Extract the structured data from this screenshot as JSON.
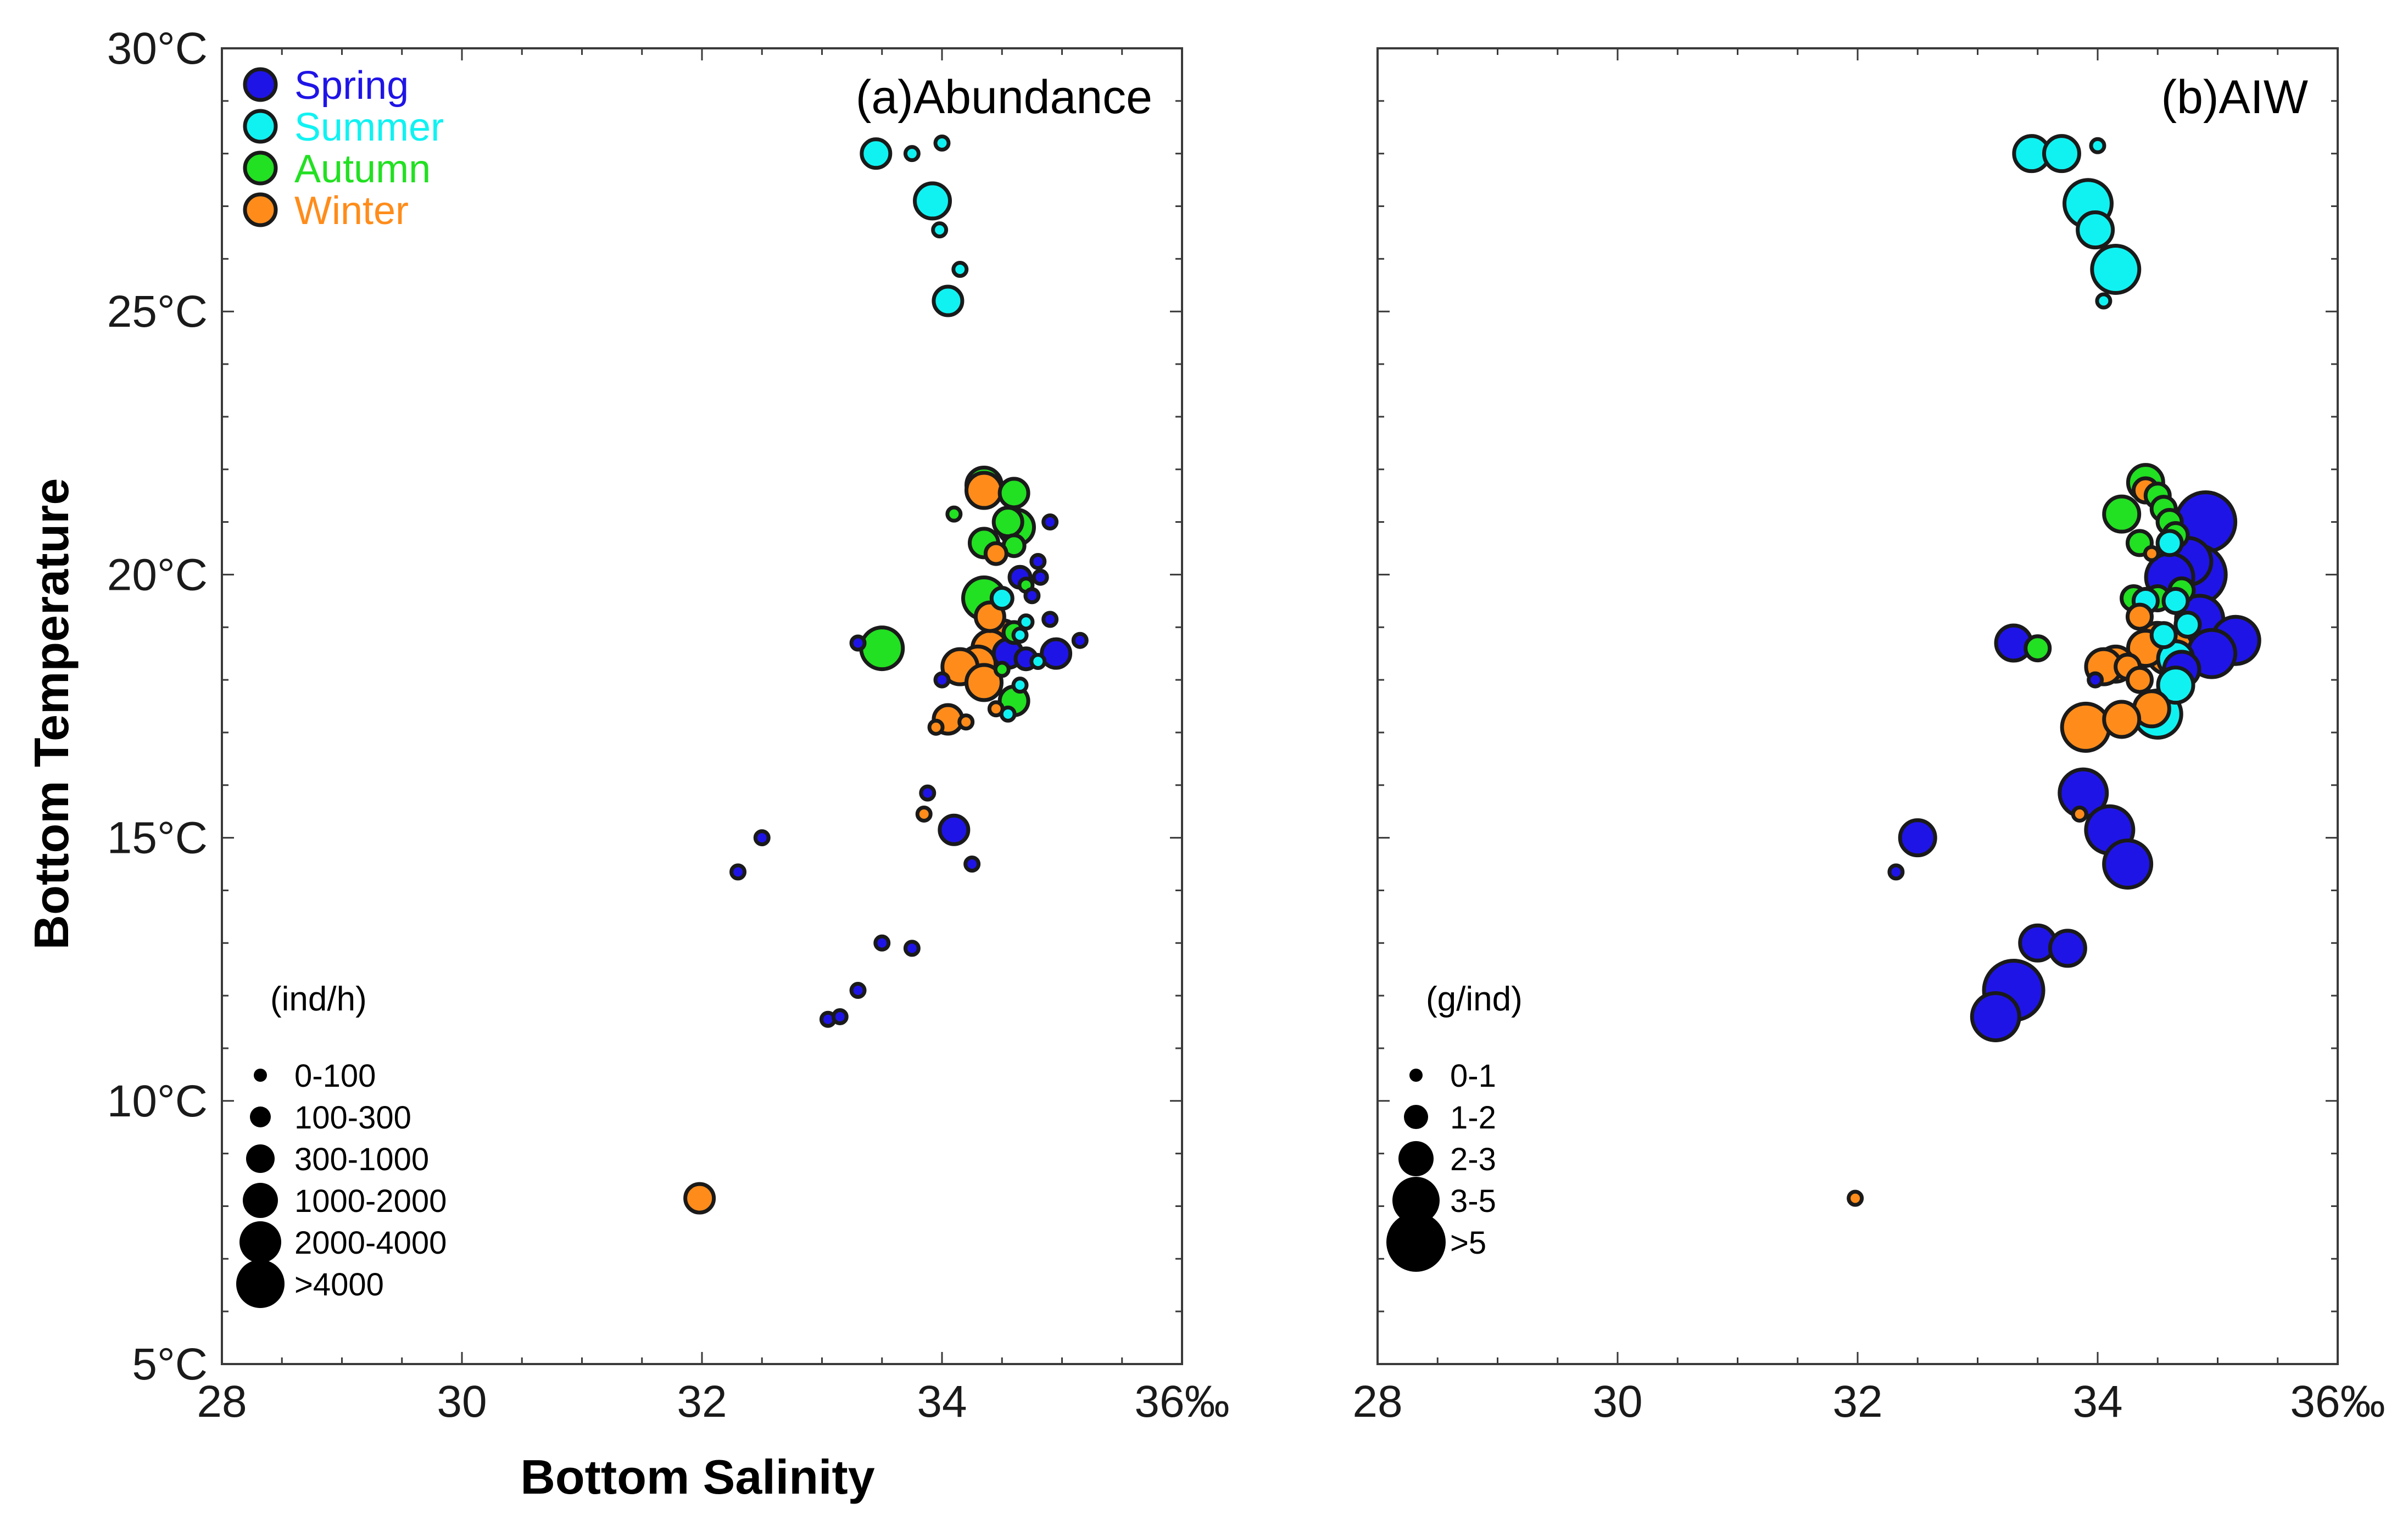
{
  "figure": {
    "x_axis_title": "Bottom Salinity",
    "y_axis_title": "Bottom Temperature"
  },
  "seasons": [
    {
      "name": "Spring",
      "color": "#1f14e6"
    },
    {
      "name": "Summer",
      "color": "#10f2f2"
    },
    {
      "name": "Autumn",
      "color": "#22e022"
    },
    {
      "name": "Winter",
      "color": "#ff8c1a"
    }
  ],
  "chart_data": [
    {
      "type": "scatter",
      "title": "(a)Abundance",
      "xlabel": "Bottom Salinity",
      "ylabel": "Bottom Temperature",
      "xlim": [
        28,
        36
      ],
      "ylim": [
        5,
        30
      ],
      "x_ticks": [
        "28",
        "30",
        "32",
        "34",
        "36‰"
      ],
      "y_ticks": [
        "5°C",
        "10°C",
        "15°C",
        "20°C",
        "25°C",
        "30°C"
      ],
      "legend_position": "top-left",
      "size_legend": {
        "title": "(ind/h)",
        "labels": [
          "0-100",
          "100-300",
          "300-1000",
          "1000-2000",
          "2000-4000",
          ">4000"
        ]
      },
      "points": [
        {
          "x": 33.45,
          "y": 28.0,
          "s": 3,
          "season": "Summer"
        },
        {
          "x": 33.75,
          "y": 28.0,
          "s": 1,
          "season": "Summer"
        },
        {
          "x": 34.0,
          "y": 28.2,
          "s": 1,
          "season": "Summer"
        },
        {
          "x": 33.92,
          "y": 27.1,
          "s": 4,
          "season": "Summer"
        },
        {
          "x": 33.98,
          "y": 26.55,
          "s": 1,
          "season": "Summer"
        },
        {
          "x": 34.15,
          "y": 25.8,
          "s": 1,
          "season": "Summer"
        },
        {
          "x": 34.05,
          "y": 25.2,
          "s": 3,
          "season": "Summer"
        },
        {
          "x": 34.35,
          "y": 21.7,
          "s": 4,
          "season": "Autumn"
        },
        {
          "x": 34.35,
          "y": 21.6,
          "s": 4,
          "season": "Winter"
        },
        {
          "x": 34.6,
          "y": 21.55,
          "s": 3,
          "season": "Autumn"
        },
        {
          "x": 34.1,
          "y": 21.15,
          "s": 1,
          "season": "Autumn"
        },
        {
          "x": 34.9,
          "y": 21.0,
          "s": 1,
          "season": "Spring"
        },
        {
          "x": 34.55,
          "y": 21.0,
          "s": 3,
          "season": "Autumn"
        },
        {
          "x": 34.62,
          "y": 20.9,
          "s": 4,
          "season": "Autumn"
        },
        {
          "x": 34.35,
          "y": 20.6,
          "s": 3,
          "season": "Autumn"
        },
        {
          "x": 34.6,
          "y": 20.55,
          "s": 2,
          "season": "Autumn"
        },
        {
          "x": 34.45,
          "y": 20.4,
          "s": 2,
          "season": "Winter"
        },
        {
          "x": 34.8,
          "y": 20.25,
          "s": 1,
          "season": "Spring"
        },
        {
          "x": 34.65,
          "y": 19.95,
          "s": 2,
          "season": "Spring"
        },
        {
          "x": 34.82,
          "y": 19.95,
          "s": 1,
          "season": "Spring"
        },
        {
          "x": 34.7,
          "y": 19.8,
          "s": 1,
          "season": "Autumn"
        },
        {
          "x": 34.75,
          "y": 19.6,
          "s": 1,
          "season": "Spring"
        },
        {
          "x": 34.35,
          "y": 19.55,
          "s": 5,
          "season": "Autumn"
        },
        {
          "x": 34.5,
          "y": 19.55,
          "s": 2,
          "season": "Summer"
        },
        {
          "x": 34.4,
          "y": 19.2,
          "s": 3,
          "season": "Winter"
        },
        {
          "x": 34.9,
          "y": 19.15,
          "s": 1,
          "season": "Spring"
        },
        {
          "x": 34.7,
          "y": 19.1,
          "s": 1,
          "season": "Summer"
        },
        {
          "x": 34.6,
          "y": 18.9,
          "s": 2,
          "season": "Autumn"
        },
        {
          "x": 34.65,
          "y": 18.85,
          "s": 1,
          "season": "Summer"
        },
        {
          "x": 34.5,
          "y": 18.8,
          "s": 4,
          "season": "Winter"
        },
        {
          "x": 35.15,
          "y": 18.75,
          "s": 1,
          "season": "Spring"
        },
        {
          "x": 34.4,
          "y": 18.6,
          "s": 4,
          "season": "Winter"
        },
        {
          "x": 33.5,
          "y": 18.6,
          "s": 5,
          "season": "Autumn"
        },
        {
          "x": 33.3,
          "y": 18.7,
          "s": 1,
          "season": "Spring"
        },
        {
          "x": 34.55,
          "y": 18.5,
          "s": 3,
          "season": "Spring"
        },
        {
          "x": 34.95,
          "y": 18.5,
          "s": 3,
          "season": "Spring"
        },
        {
          "x": 34.7,
          "y": 18.4,
          "s": 2,
          "season": "Spring"
        },
        {
          "x": 34.8,
          "y": 18.35,
          "s": 1,
          "season": "Summer"
        },
        {
          "x": 34.3,
          "y": 18.3,
          "s": 4,
          "season": "Winter"
        },
        {
          "x": 34.15,
          "y": 18.25,
          "s": 4,
          "season": "Winter"
        },
        {
          "x": 34.5,
          "y": 18.2,
          "s": 1,
          "season": "Autumn"
        },
        {
          "x": 34.0,
          "y": 18.0,
          "s": 1,
          "season": "Spring"
        },
        {
          "x": 34.35,
          "y": 17.95,
          "s": 4,
          "season": "Winter"
        },
        {
          "x": 34.65,
          "y": 17.9,
          "s": 1,
          "season": "Summer"
        },
        {
          "x": 34.6,
          "y": 17.6,
          "s": 3,
          "season": "Autumn"
        },
        {
          "x": 34.45,
          "y": 17.45,
          "s": 1,
          "season": "Winter"
        },
        {
          "x": 34.55,
          "y": 17.35,
          "s": 1,
          "season": "Summer"
        },
        {
          "x": 34.05,
          "y": 17.25,
          "s": 3,
          "season": "Winter"
        },
        {
          "x": 34.2,
          "y": 17.2,
          "s": 1,
          "season": "Winter"
        },
        {
          "x": 33.95,
          "y": 17.1,
          "s": 1,
          "season": "Winter"
        },
        {
          "x": 33.88,
          "y": 15.85,
          "s": 1,
          "season": "Spring"
        },
        {
          "x": 33.85,
          "y": 15.45,
          "s": 1,
          "season": "Winter"
        },
        {
          "x": 34.1,
          "y": 15.15,
          "s": 3,
          "season": "Spring"
        },
        {
          "x": 32.5,
          "y": 15.0,
          "s": 1,
          "season": "Spring"
        },
        {
          "x": 34.25,
          "y": 14.5,
          "s": 1,
          "season": "Spring"
        },
        {
          "x": 32.3,
          "y": 14.35,
          "s": 1,
          "season": "Spring"
        },
        {
          "x": 33.5,
          "y": 13.0,
          "s": 1,
          "season": "Spring"
        },
        {
          "x": 33.75,
          "y": 12.9,
          "s": 1,
          "season": "Spring"
        },
        {
          "x": 33.3,
          "y": 12.1,
          "s": 1,
          "season": "Spring"
        },
        {
          "x": 33.05,
          "y": 11.55,
          "s": 1,
          "season": "Spring"
        },
        {
          "x": 33.15,
          "y": 11.6,
          "s": 1,
          "season": "Spring"
        },
        {
          "x": 31.98,
          "y": 8.15,
          "s": 3,
          "season": "Winter"
        }
      ]
    },
    {
      "type": "scatter",
      "title": "(b)AIW",
      "xlabel": "Bottom Salinity",
      "ylabel": "Bottom Temperature",
      "xlim": [
        28,
        36
      ],
      "ylim": [
        5,
        30
      ],
      "x_ticks": [
        "28",
        "30",
        "32",
        "34",
        "36‰"
      ],
      "y_ticks": [
        "5°C",
        "10°C",
        "15°C",
        "20°C",
        "25°C",
        "30°C"
      ],
      "size_legend": {
        "title": "(g/ind)",
        "labels": [
          "0-1",
          "1-2",
          "2-3",
          "3-5",
          ">5"
        ]
      },
      "points": [
        {
          "x": 33.45,
          "y": 28.0,
          "s": 3,
          "season": "Summer"
        },
        {
          "x": 33.7,
          "y": 28.0,
          "s": 3,
          "season": "Summer"
        },
        {
          "x": 34.0,
          "y": 28.15,
          "s": 1,
          "season": "Summer"
        },
        {
          "x": 33.92,
          "y": 27.05,
          "s": 4,
          "season": "Summer"
        },
        {
          "x": 33.98,
          "y": 26.55,
          "s": 3,
          "season": "Summer"
        },
        {
          "x": 34.15,
          "y": 25.8,
          "s": 4,
          "season": "Summer"
        },
        {
          "x": 34.05,
          "y": 25.2,
          "s": 1,
          "season": "Summer"
        },
        {
          "x": 34.4,
          "y": 21.75,
          "s": 3,
          "season": "Autumn"
        },
        {
          "x": 34.4,
          "y": 21.6,
          "s": 2,
          "season": "Winter"
        },
        {
          "x": 34.5,
          "y": 21.5,
          "s": 2,
          "season": "Autumn"
        },
        {
          "x": 34.55,
          "y": 21.25,
          "s": 2,
          "season": "Autumn"
        },
        {
          "x": 34.2,
          "y": 21.15,
          "s": 3,
          "season": "Autumn"
        },
        {
          "x": 34.9,
          "y": 21.0,
          "s": 5,
          "season": "Spring"
        },
        {
          "x": 34.6,
          "y": 21.0,
          "s": 2,
          "season": "Autumn"
        },
        {
          "x": 34.65,
          "y": 20.75,
          "s": 2,
          "season": "Autumn"
        },
        {
          "x": 34.6,
          "y": 20.6,
          "s": 2,
          "season": "Summer"
        },
        {
          "x": 34.35,
          "y": 20.6,
          "s": 2,
          "season": "Autumn"
        },
        {
          "x": 34.45,
          "y": 20.4,
          "s": 1,
          "season": "Winter"
        },
        {
          "x": 34.75,
          "y": 20.25,
          "s": 4,
          "season": "Spring"
        },
        {
          "x": 34.82,
          "y": 20.0,
          "s": 5,
          "season": "Spring"
        },
        {
          "x": 34.6,
          "y": 19.95,
          "s": 4,
          "season": "Spring"
        },
        {
          "x": 34.7,
          "y": 19.7,
          "s": 2,
          "season": "Autumn"
        },
        {
          "x": 34.5,
          "y": 19.55,
          "s": 2,
          "season": "Autumn"
        },
        {
          "x": 34.3,
          "y": 19.55,
          "s": 2,
          "season": "Autumn"
        },
        {
          "x": 34.4,
          "y": 19.5,
          "s": 2,
          "season": "Summer"
        },
        {
          "x": 34.65,
          "y": 19.5,
          "s": 2,
          "season": "Summer"
        },
        {
          "x": 34.35,
          "y": 19.2,
          "s": 2,
          "season": "Winter"
        },
        {
          "x": 34.85,
          "y": 19.15,
          "s": 4,
          "season": "Spring"
        },
        {
          "x": 34.75,
          "y": 19.05,
          "s": 2,
          "season": "Summer"
        },
        {
          "x": 34.55,
          "y": 18.85,
          "s": 2,
          "season": "Summer"
        },
        {
          "x": 34.5,
          "y": 18.75,
          "s": 3,
          "season": "Winter"
        },
        {
          "x": 35.15,
          "y": 18.75,
          "s": 4,
          "season": "Spring"
        },
        {
          "x": 33.3,
          "y": 18.7,
          "s": 3,
          "season": "Spring"
        },
        {
          "x": 33.5,
          "y": 18.6,
          "s": 2,
          "season": "Autumn"
        },
        {
          "x": 34.4,
          "y": 18.6,
          "s": 3,
          "season": "Winter"
        },
        {
          "x": 34.6,
          "y": 18.55,
          "s": 4,
          "season": "Winter"
        },
        {
          "x": 34.95,
          "y": 18.5,
          "s": 4,
          "season": "Spring"
        },
        {
          "x": 34.65,
          "y": 18.4,
          "s": 3,
          "season": "Summer"
        },
        {
          "x": 34.15,
          "y": 18.3,
          "s": 3,
          "season": "Winter"
        },
        {
          "x": 34.05,
          "y": 18.25,
          "s": 3,
          "season": "Winter"
        },
        {
          "x": 34.25,
          "y": 18.25,
          "s": 2,
          "season": "Winter"
        },
        {
          "x": 34.7,
          "y": 18.2,
          "s": 3,
          "season": "Spring"
        },
        {
          "x": 34.35,
          "y": 18.0,
          "s": 2,
          "season": "Winter"
        },
        {
          "x": 33.98,
          "y": 18.0,
          "s": 1,
          "season": "Spring"
        },
        {
          "x": 34.65,
          "y": 17.9,
          "s": 3,
          "season": "Summer"
        },
        {
          "x": 34.45,
          "y": 17.45,
          "s": 3,
          "season": "Winter"
        },
        {
          "x": 34.5,
          "y": 17.35,
          "s": 4,
          "season": "Summer"
        },
        {
          "x": 34.2,
          "y": 17.25,
          "s": 3,
          "season": "Winter"
        },
        {
          "x": 33.9,
          "y": 17.1,
          "s": 4,
          "season": "Winter"
        },
        {
          "x": 33.88,
          "y": 15.85,
          "s": 4,
          "season": "Spring"
        },
        {
          "x": 33.85,
          "y": 15.45,
          "s": 1,
          "season": "Winter"
        },
        {
          "x": 34.1,
          "y": 15.15,
          "s": 4,
          "season": "Spring"
        },
        {
          "x": 32.5,
          "y": 15.0,
          "s": 3,
          "season": "Spring"
        },
        {
          "x": 34.25,
          "y": 14.5,
          "s": 4,
          "season": "Spring"
        },
        {
          "x": 32.32,
          "y": 14.35,
          "s": 1,
          "season": "Spring"
        },
        {
          "x": 33.5,
          "y": 13.0,
          "s": 3,
          "season": "Spring"
        },
        {
          "x": 33.75,
          "y": 12.9,
          "s": 3,
          "season": "Spring"
        },
        {
          "x": 33.3,
          "y": 12.1,
          "s": 5,
          "season": "Spring"
        },
        {
          "x": 33.15,
          "y": 11.6,
          "s": 4,
          "season": "Spring"
        },
        {
          "x": 31.98,
          "y": 8.15,
          "s": 1,
          "season": "Winter"
        }
      ]
    }
  ]
}
